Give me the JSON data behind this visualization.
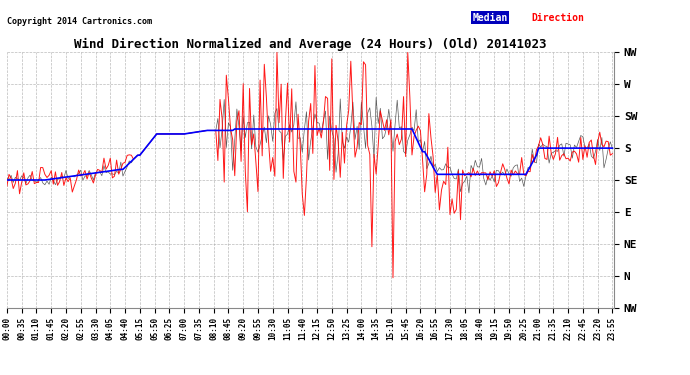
{
  "title": "Wind Direction Normalized and Average (24 Hours) (Old) 20141023",
  "copyright": "Copyright 2014 Cartronics.com",
  "ytick_labels": [
    "NW",
    "W",
    "SW",
    "S",
    "SE",
    "E",
    "NE",
    "N",
    "NW"
  ],
  "ytick_values": [
    360,
    315,
    270,
    225,
    180,
    135,
    90,
    45,
    0
  ],
  "ylim": [
    0,
    360
  ],
  "background_color": "#ffffff",
  "grid_color": "#aaaaaa",
  "legend_median_bg": "#0000bb",
  "legend_direction_color": "#ff0000",
  "line_blue_color": "#0000ff",
  "line_red_color": "#ff0000",
  "line_dark_color": "#333333"
}
